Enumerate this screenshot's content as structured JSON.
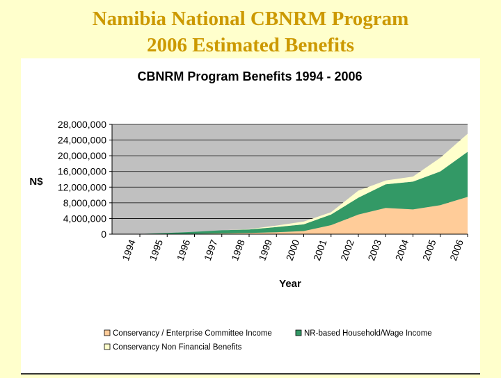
{
  "slide": {
    "title_line1": "Namibia National CBNRM Program",
    "title_line2": "2006  Estimated Benefits"
  },
  "colors": {
    "background": "#ffffcc",
    "title": "#cc9900",
    "plot_area": "#c0c0c0",
    "series": [
      "#ffcc99",
      "#339966",
      "#ffffcc"
    ]
  },
  "chart_data": {
    "type": "area",
    "stacked": true,
    "title": "CBNRM Program Benefits 1994 - 2006",
    "xlabel": "Year",
    "ylabel": "N$",
    "categories": [
      "1994",
      "1995",
      "1996",
      "1997",
      "1998",
      "1999",
      "2000",
      "2001",
      "2002",
      "2003",
      "2004",
      "2005",
      "2006"
    ],
    "ylim": [
      0,
      28000000
    ],
    "yticks": [
      0,
      4000000,
      8000000,
      12000000,
      16000000,
      20000000,
      24000000,
      28000000
    ],
    "ytick_labels": [
      "0",
      "4,000,000",
      "8,000,000",
      "12,000,000",
      "16,000,000",
      "20,000,000",
      "24,000,000",
      "28,000,000"
    ],
    "grid": "horizontal",
    "legend_position": "bottom",
    "series": [
      {
        "name": "Conservancy / Enterprise Committee Income",
        "color": "#ffcc99",
        "values": [
          0,
          50000,
          100000,
          200000,
          300000,
          500000,
          800000,
          2300000,
          5000000,
          6700000,
          6300000,
          7400000,
          9500000
        ]
      },
      {
        "name": "NR-based Household/Wage Income",
        "color": "#339966",
        "values": [
          50000,
          250000,
          500000,
          800000,
          900000,
          1300000,
          1700000,
          2700000,
          4300000,
          6000000,
          7100000,
          8600000,
          11500000
        ]
      },
      {
        "name": "Conservancy Non Financial Benefits",
        "color": "#ffffcc",
        "values": [
          0,
          0,
          0,
          0,
          100000,
          400000,
          700000,
          600000,
          1800000,
          1000000,
          1300000,
          3500000,
          4600000
        ]
      }
    ]
  }
}
